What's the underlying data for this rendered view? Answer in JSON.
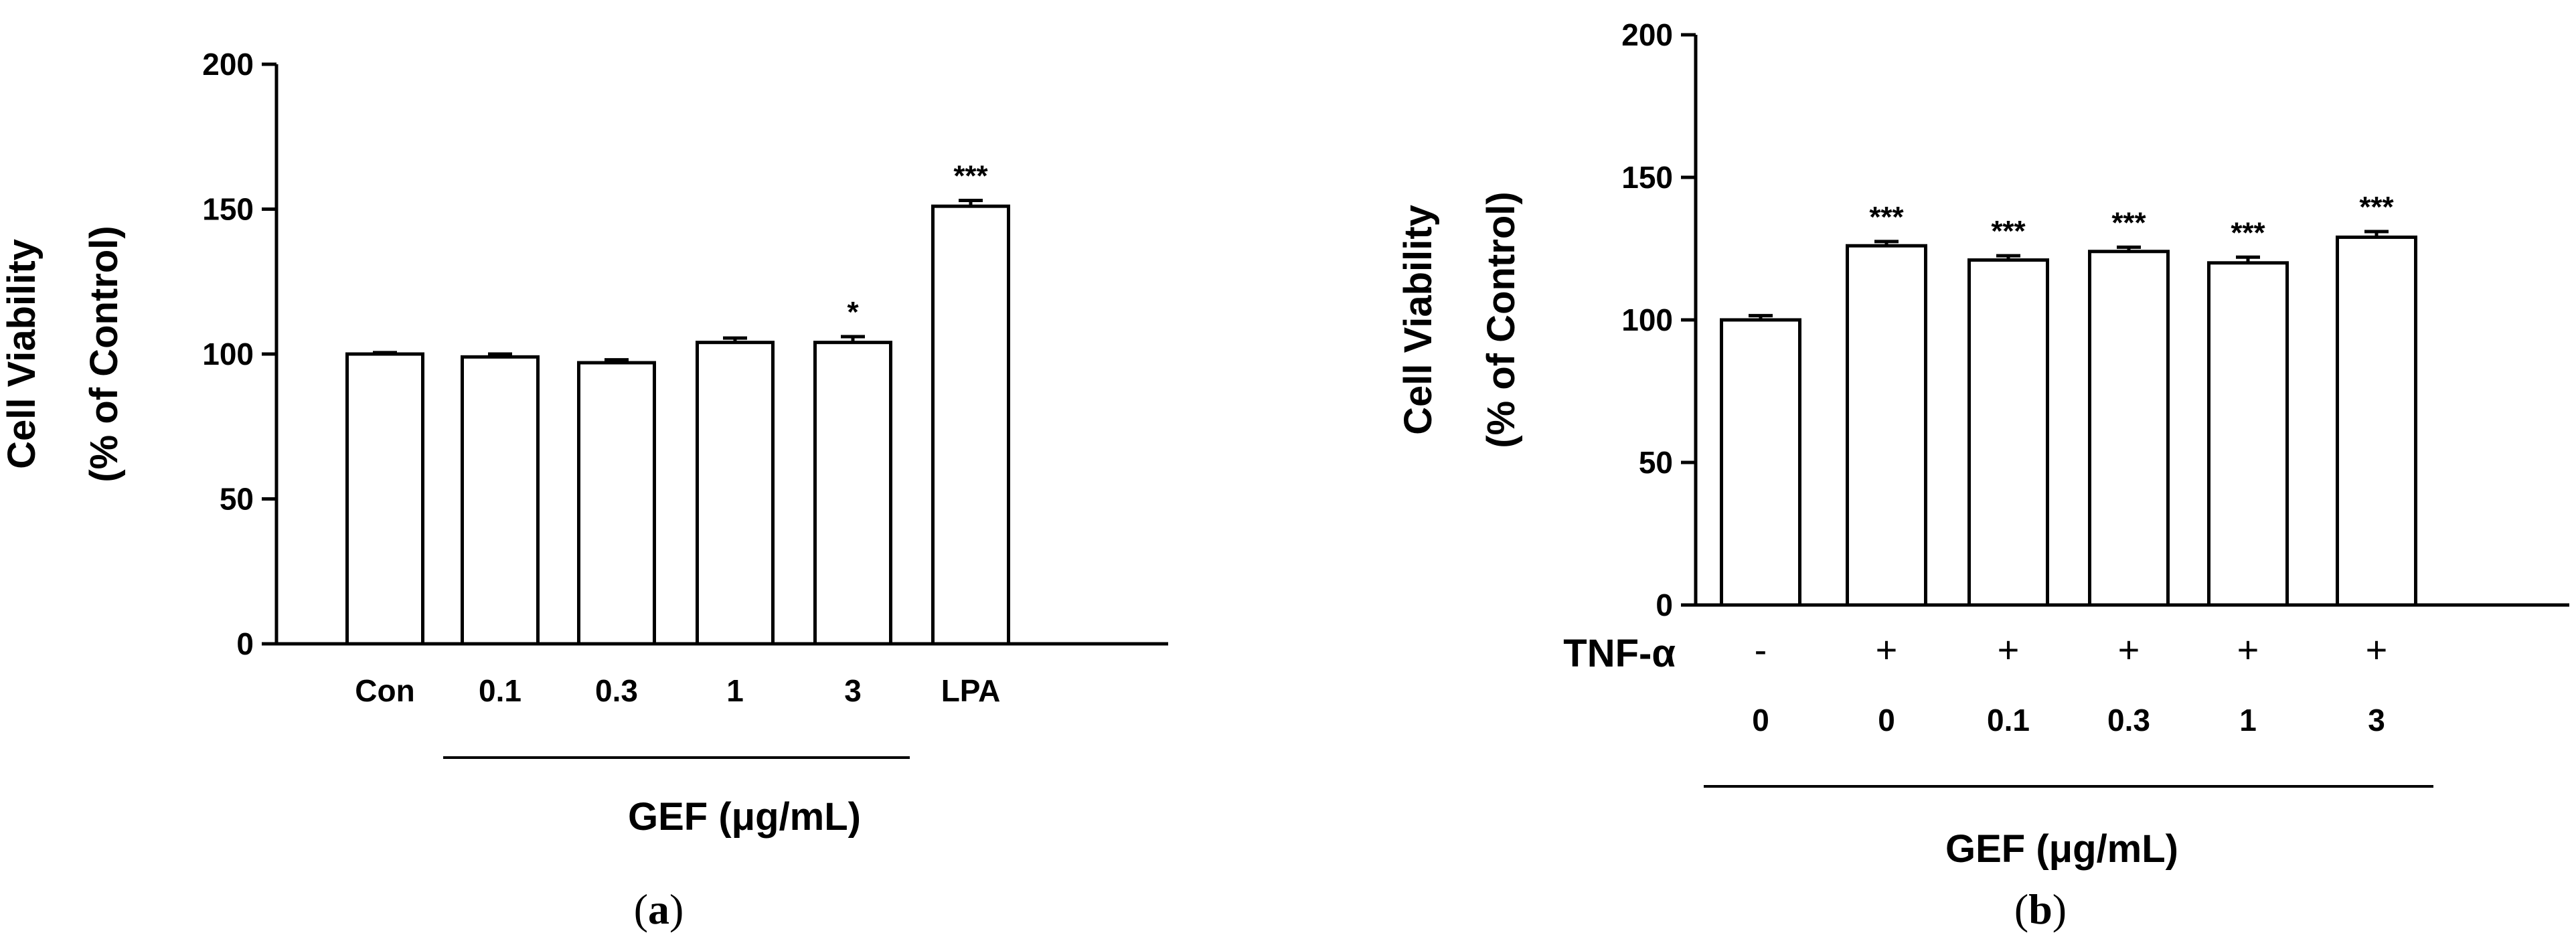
{
  "chart_data": [
    {
      "type": "bar",
      "panel_label": "a",
      "ylabel_line1": "Cell Viability",
      "ylabel_line2": "(% of Control)",
      "ylim": [
        0,
        200
      ],
      "yticks": [
        0,
        50,
        100,
        150,
        200
      ],
      "categories": [
        "Con",
        "0.1",
        "0.3",
        "1",
        "3",
        "LPA"
      ],
      "values": [
        100,
        99,
        97,
        104,
        104,
        151
      ],
      "errors": [
        0.5,
        1.0,
        1.0,
        1.5,
        2.0,
        2.0
      ],
      "significance": [
        "",
        "",
        "",
        "",
        "*",
        "***"
      ],
      "group_label": "GEF (μg/mL)",
      "group_span": [
        "0.1",
        "3"
      ]
    },
    {
      "type": "bar",
      "panel_label": "b",
      "ylabel_line1": "Cell Viability",
      "ylabel_line2": "(% of Control)",
      "ylim": [
        0,
        200
      ],
      "yticks": [
        0,
        50,
        100,
        150,
        200
      ],
      "treatment_label": "TNF-α",
      "treatment": [
        "-",
        "+",
        "+",
        "+",
        "+",
        "+"
      ],
      "categories": [
        "0",
        "0",
        "0.1",
        "0.3",
        "1",
        "3"
      ],
      "values": [
        100,
        126,
        121,
        124,
        120,
        129
      ],
      "errors": [
        1.5,
        1.5,
        1.5,
        1.5,
        2.0,
        2.0
      ],
      "significance": [
        "",
        "***",
        "***",
        "***",
        "***",
        "***"
      ],
      "group_label": "GEF (μg/mL)",
      "group_span": [
        "0",
        "3"
      ]
    }
  ]
}
